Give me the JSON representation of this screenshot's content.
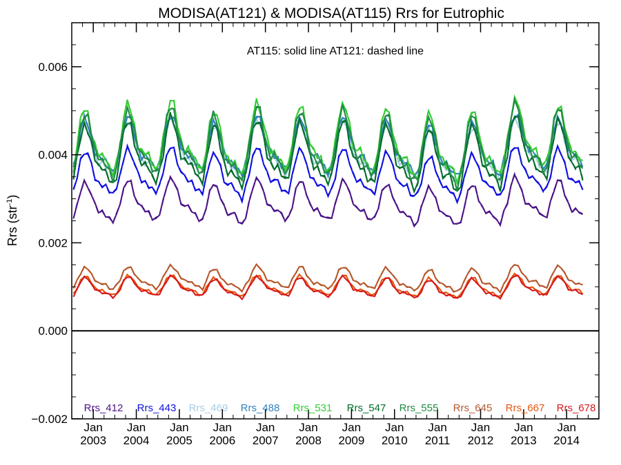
{
  "chart_data": {
    "type": "line",
    "title": "MODISA(AT121) & MODISA(AT115)  Rrs for Eutrophic",
    "subtitle": "AT115: solid line   AT121: dashed line",
    "ylabel": "Rrs (str",
    "ylabel_sup": "-1",
    "ylabel_close": ")",
    "xlabel": "",
    "ylim": [
      -0.002,
      0.007
    ],
    "xlim": [
      2002.5,
      2014.75
    ],
    "grid": false,
    "zero_line": true,
    "legend_position": "bottom",
    "y_ticks": [
      {
        "value": -0.002,
        "label": "−0.002"
      },
      {
        "value": 0.0,
        "label": "0.000"
      },
      {
        "value": 0.002,
        "label": "0.002"
      },
      {
        "value": 0.004,
        "label": "0.004"
      },
      {
        "value": 0.006,
        "label": "0.006"
      }
    ],
    "x_ticks": [
      {
        "value": 2003,
        "month": "Jan",
        "year": "2003"
      },
      {
        "value": 2004,
        "month": "Jan",
        "year": "2004"
      },
      {
        "value": 2005,
        "month": "Jan",
        "year": "2005"
      },
      {
        "value": 2006,
        "month": "Jan",
        "year": "2006"
      },
      {
        "value": 2007,
        "month": "Jan",
        "year": "2007"
      },
      {
        "value": 2008,
        "month": "Jan",
        "year": "2008"
      },
      {
        "value": 2009,
        "month": "Jan",
        "year": "2009"
      },
      {
        "value": 2010,
        "month": "Jan",
        "year": "2010"
      },
      {
        "value": 2011,
        "month": "Jan",
        "year": "2011"
      },
      {
        "value": 2012,
        "month": "Jan",
        "year": "2012"
      },
      {
        "value": 2013,
        "month": "Jan",
        "year": "2013"
      },
      {
        "value": 2014,
        "month": "Jan",
        "year": "2014"
      }
    ],
    "series": [
      {
        "name": "Rrs_412",
        "color": "#4b1387",
        "base": 0.00285,
        "amp": 0.00045
      },
      {
        "name": "Rrs_443",
        "color": "#1010e0",
        "base": 0.0035,
        "amp": 0.0005
      },
      {
        "name": "Rrs_469",
        "color": "#a6cee3",
        "base": 0.004,
        "amp": 0.0006
      },
      {
        "name": "Rrs_488",
        "color": "#3182bd",
        "base": 0.0041,
        "amp": 0.0006
      },
      {
        "name": "Rrs_531",
        "color": "#33cc33",
        "base": 0.0042,
        "amp": 0.00075
      },
      {
        "name": "Rrs_547",
        "color": "#006d2c",
        "base": 0.0039,
        "amp": 0.0007
      },
      {
        "name": "Rrs_555",
        "color": "#238b45",
        "base": 0.0041,
        "amp": 0.00075
      },
      {
        "name": "Rrs_645",
        "color": "#b5572b",
        "base": 0.00115,
        "amp": 0.00025
      },
      {
        "name": "Rrs_667",
        "color": "#e6550d",
        "base": 0.00098,
        "amp": 0.00022
      },
      {
        "name": "Rrs_678",
        "color": "#d7191c",
        "base": 0.00095,
        "amp": 0.00022
      }
    ]
  }
}
